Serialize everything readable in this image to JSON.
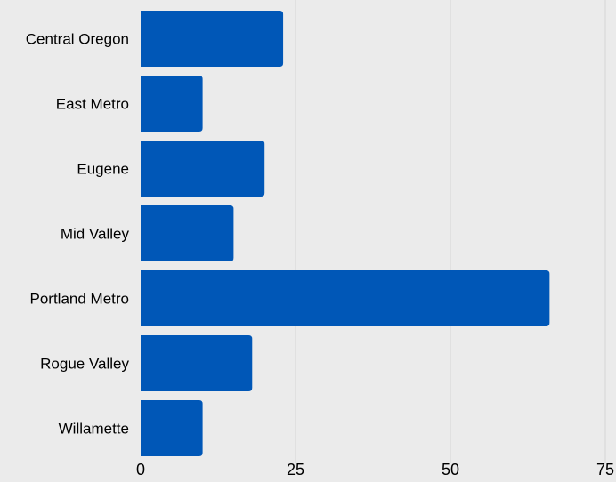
{
  "chart_data": {
    "type": "bar",
    "orientation": "horizontal",
    "categories": [
      "Central Oregon",
      "East Metro",
      "Eugene",
      "Mid Valley",
      "Portland Metro",
      "Rogue Valley",
      "Willamette"
    ],
    "values": [
      23,
      10,
      20,
      15,
      66,
      18,
      10
    ],
    "xlim": [
      0,
      75
    ],
    "xticks": [
      "0",
      "25",
      "50",
      "75"
    ],
    "title": "",
    "xlabel": "",
    "ylabel": "",
    "grid": "vertical",
    "legend": "none",
    "bar_color": "#0057b7",
    "background_color": "#ebebeb"
  }
}
